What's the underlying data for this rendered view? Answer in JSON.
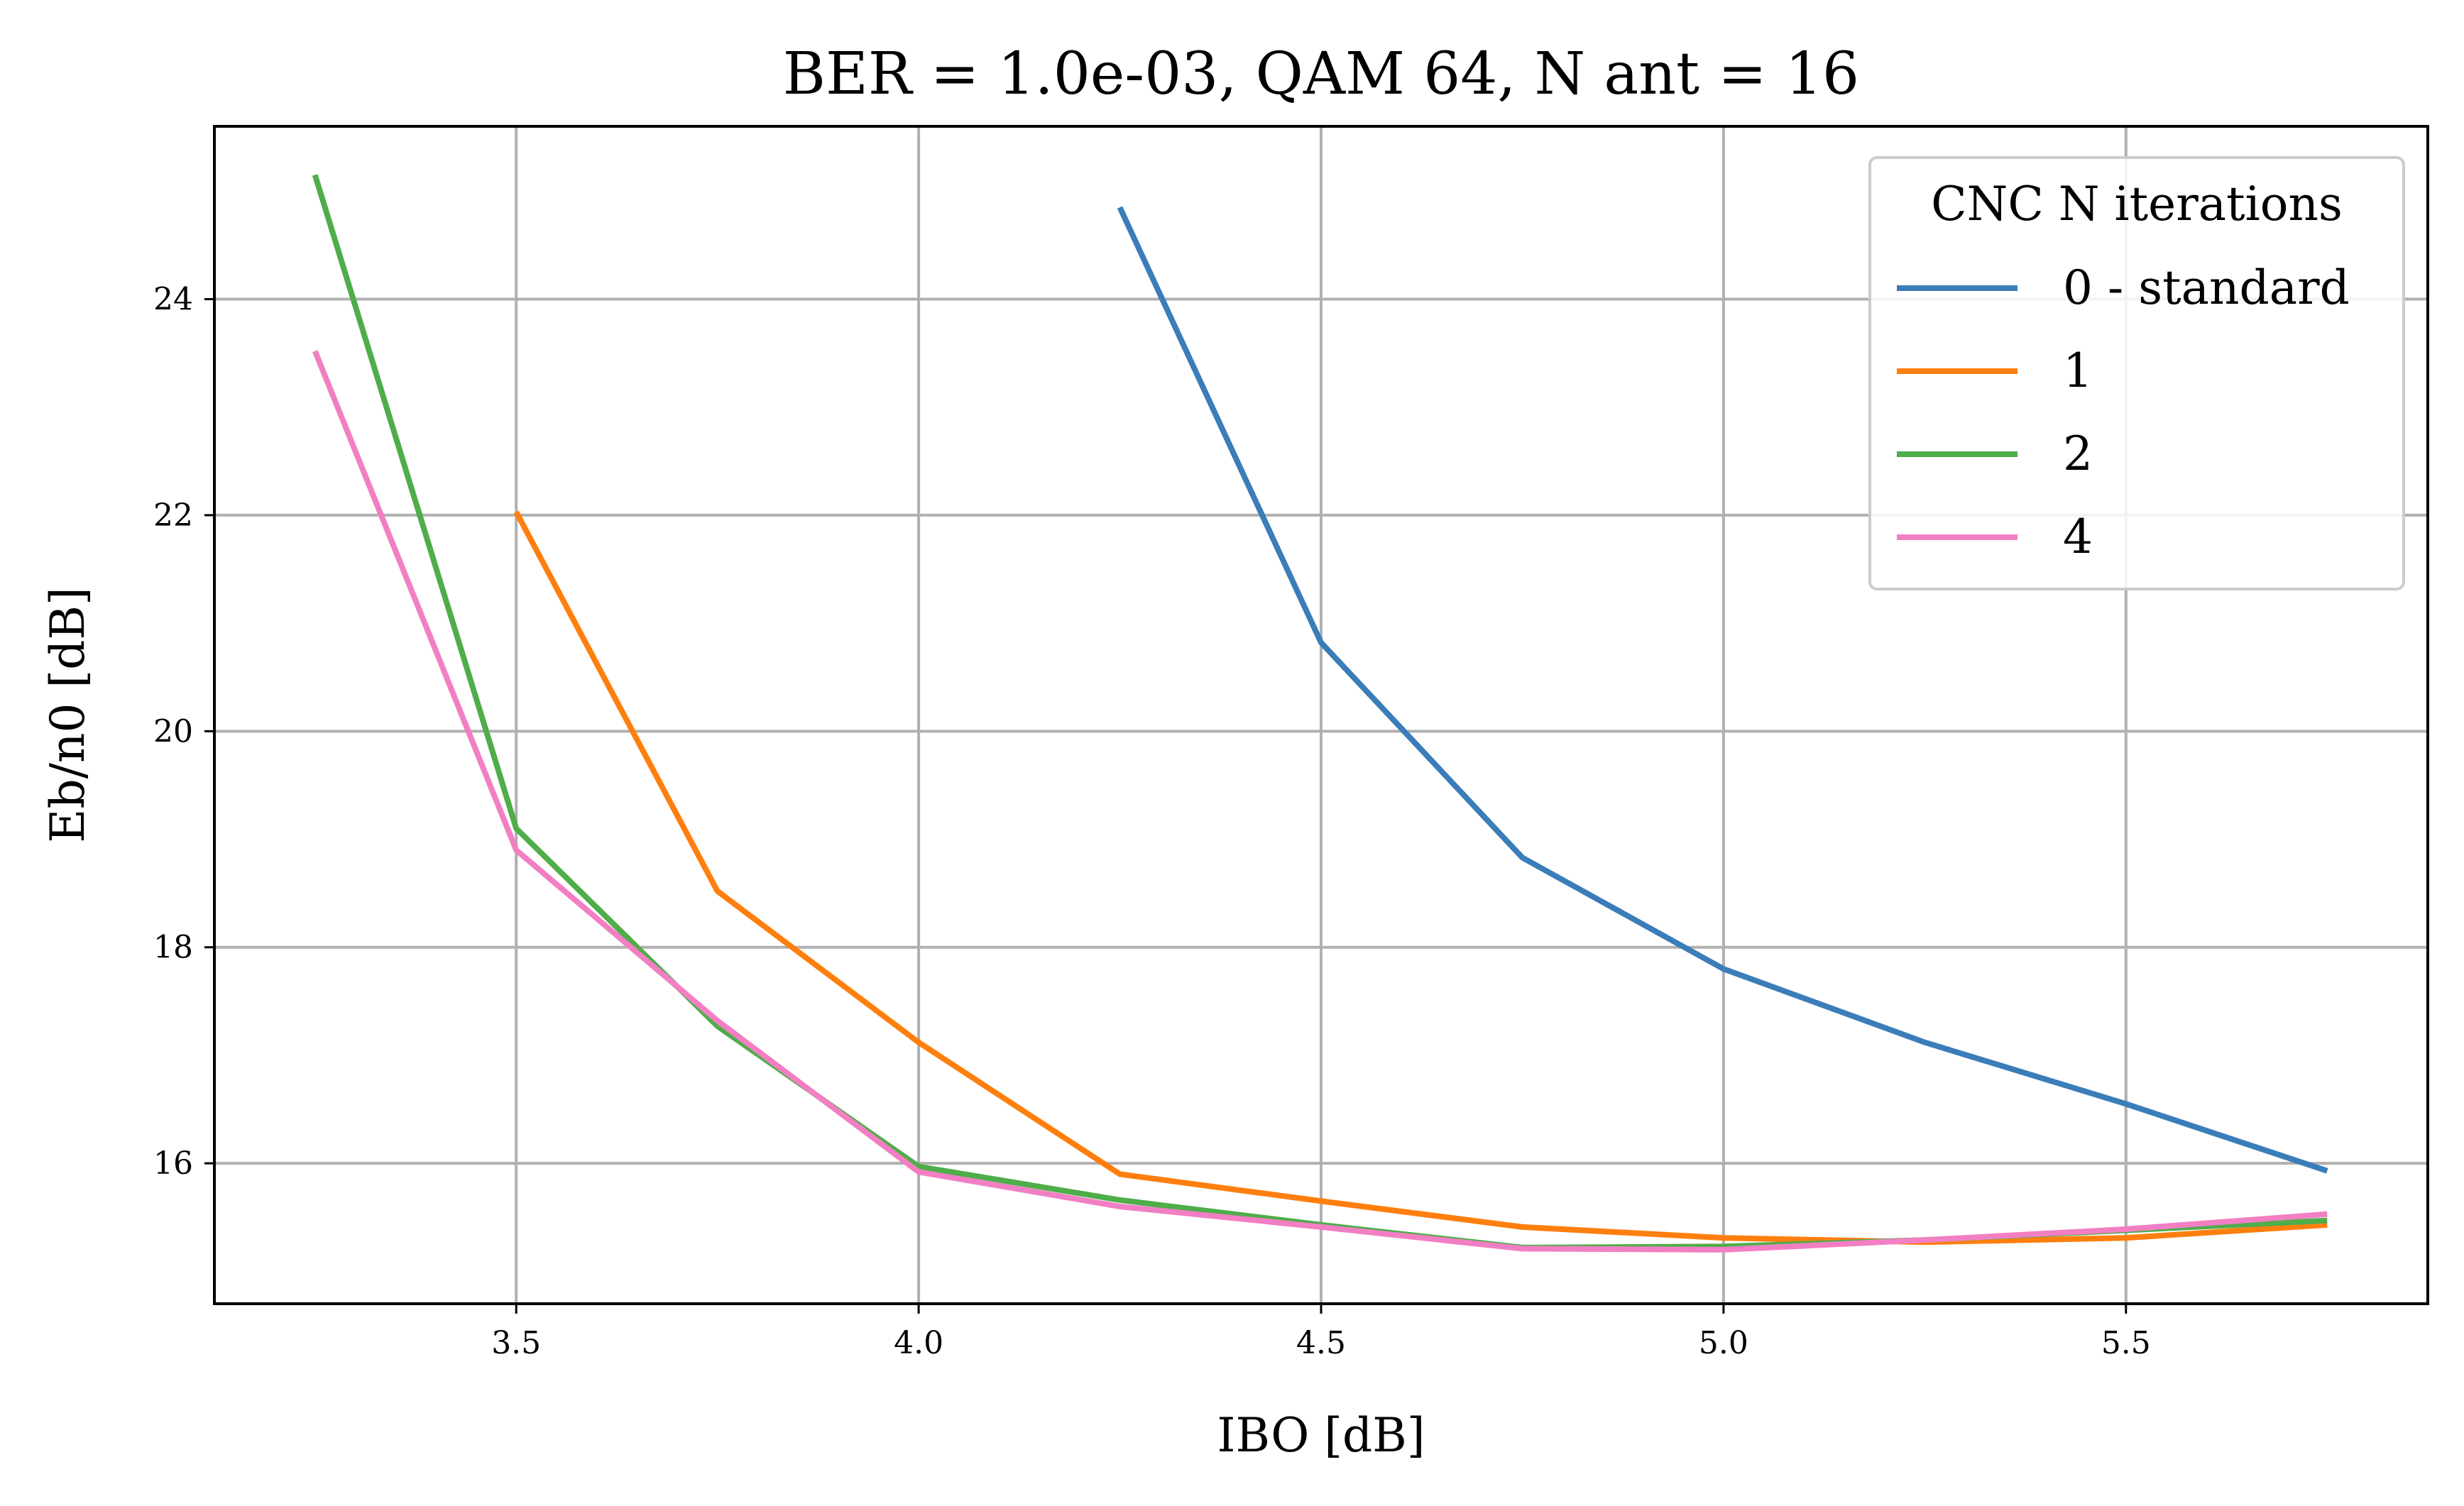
{
  "chart_data": {
    "type": "line",
    "title": "BER = 1.0e-03, QAM 64, N ant = 16",
    "xlabel": "IBO [dB]",
    "ylabel": "Eb/n0 [dB]",
    "xlim": [
      3.125,
      5.875
    ],
    "ylim": [
      14.7,
      25.6
    ],
    "xticks": [
      3.5,
      4.0,
      4.5,
      5.0,
      5.5
    ],
    "xtick_labels": [
      "3.5",
      "4.0",
      "4.5",
      "5.0",
      "5.5"
    ],
    "yticks": [
      16,
      18,
      20,
      22,
      24
    ],
    "ytick_labels": [
      "16",
      "18",
      "20",
      "22",
      "24"
    ],
    "grid": true,
    "legend": {
      "title": "CNC N iterations",
      "placement": "top-right"
    },
    "series": [
      {
        "name": "0 - standard",
        "color": "#3a7db8",
        "x": [
          4.25,
          4.5,
          4.75,
          5.0,
          5.25,
          5.5,
          5.75
        ],
        "y": [
          24.85,
          20.82,
          18.83,
          17.8,
          17.12,
          16.55,
          15.93
        ]
      },
      {
        "name": "1",
        "color": "#ff7f0e",
        "x": [
          3.5,
          3.75,
          4.0,
          4.25,
          4.5,
          4.75,
          5.0,
          5.25,
          5.5,
          5.75
        ],
        "y": [
          22.03,
          18.52,
          17.12,
          15.9,
          15.65,
          15.41,
          15.31,
          15.27,
          15.31,
          15.43
        ]
      },
      {
        "name": "2",
        "color": "#4fad4a",
        "x": [
          3.25,
          3.5,
          3.75,
          4.0,
          4.25,
          4.5,
          4.75,
          5.0,
          5.25,
          5.5,
          5.75
        ],
        "y": [
          25.15,
          19.1,
          17.27,
          15.97,
          15.66,
          15.43,
          15.22,
          15.23,
          15.29,
          15.38,
          15.47
        ]
      },
      {
        "name": "4",
        "color": "#f27fc3",
        "x": [
          3.25,
          3.5,
          3.75,
          4.0,
          4.25,
          4.5,
          4.75,
          5.0,
          5.25,
          5.5,
          5.75
        ],
        "y": [
          23.52,
          18.9,
          17.32,
          15.92,
          15.6,
          15.41,
          15.21,
          15.2,
          15.29,
          15.39,
          15.53
        ]
      }
    ]
  }
}
